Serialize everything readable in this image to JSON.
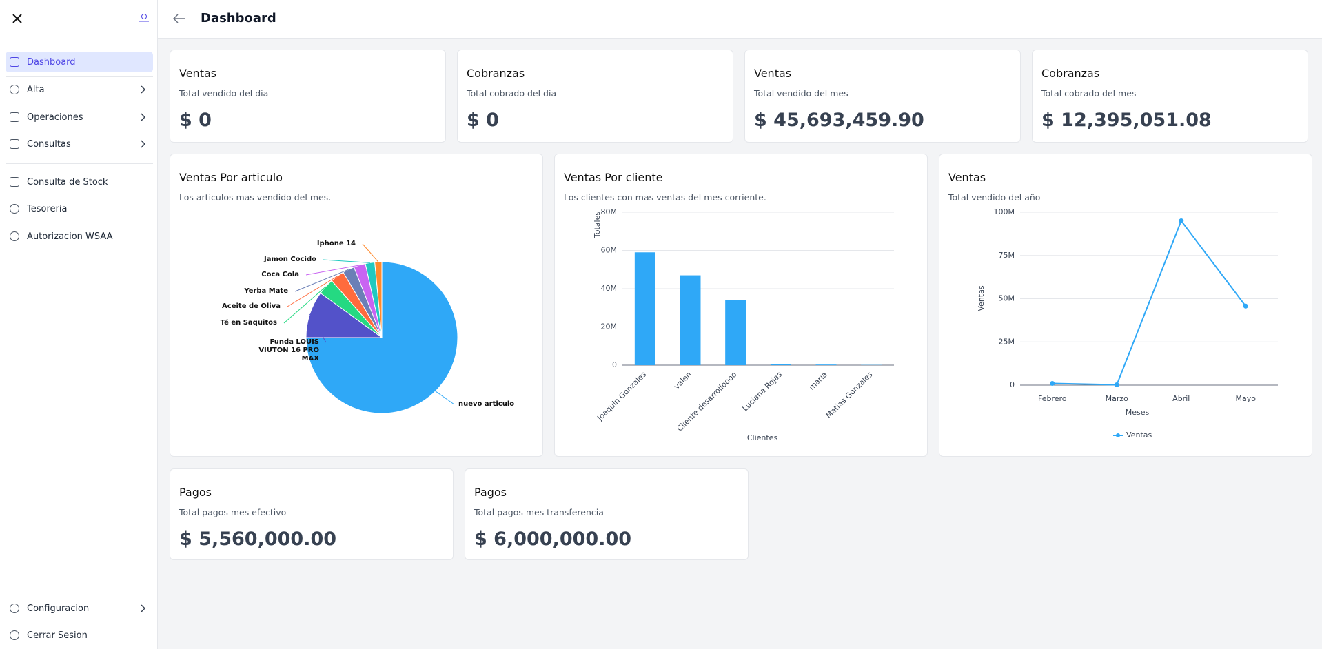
{
  "sidebar": {
    "items": [
      "Dashboard",
      "Alta",
      "Operaciones",
      "Consultas",
      "Consulta de Stock",
      "Tesoreria",
      "Autorizacion WSAA"
    ],
    "footer_items": [
      "Configuracion",
      "Cerrar Sesion"
    ]
  },
  "header": {
    "title": "Dashboard"
  },
  "stat_cards": [
    {
      "title": "Ventas",
      "subtitle": "Total vendido del dia",
      "value": "$ 0"
    },
    {
      "title": "Cobranzas",
      "subtitle": "Total cobrado del dia",
      "value": "$ 0"
    },
    {
      "title": "Ventas",
      "subtitle": "Total vendido del mes",
      "value": "$ 45,693,459.90"
    },
    {
      "title": "Cobranzas",
      "subtitle": "Total cobrado del mes",
      "value": "$ 12,395,051.08"
    }
  ],
  "payment_cards": [
    {
      "title": "Pagos",
      "subtitle": "Total pagos mes efectivo",
      "value": "$ 5,560,000.00"
    },
    {
      "title": "Pagos",
      "subtitle": "Total pagos mes transferencia",
      "value": "$ 6,000,000.00"
    }
  ],
  "chart_data": [
    {
      "type": "pie",
      "title": "Ventas Por articulo",
      "subtitle": "Los articulos mas vendido del mes.",
      "categories": [
        "nuevo articulo",
        "Funda LOUIS VIUTON 16 PRO MAX",
        "Té en Saquitos",
        "Aceite de Oliva",
        "Yerba Mate",
        "Coca Cola",
        "Jamon Cocido",
        "Iphone 14"
      ],
      "values": [
        75,
        10,
        3.5,
        3,
        2.5,
        2.5,
        2,
        1.5
      ],
      "colors": [
        "#2fa8f7",
        "#5352c9",
        "#25d982",
        "#ff6b3d",
        "#6b7fb6",
        "#c964f2",
        "#21c9c0",
        "#ff8a2d"
      ]
    },
    {
      "type": "bar",
      "title": "Ventas Por cliente",
      "subtitle": "Los clientes con mas ventas del mes corriente.",
      "categories": [
        "Joaquin Gonzales",
        "valen",
        "Cliente desarrolloooo",
        "Luciana Rojas",
        "maria",
        "Matias Gonzales"
      ],
      "values": [
        59000000,
        47000000,
        34000000,
        600000,
        300000,
        100000
      ],
      "color": "#2fa8f7",
      "ylim": [
        0,
        80000000
      ],
      "yticks": [
        0,
        {
          "value": 20000000,
          "label": "20M"
        },
        {
          "value": 40000000,
          "label": "40M"
        },
        {
          "value": 60000000,
          "label": "60M"
        },
        {
          "value": 80000000,
          "label": "80M"
        }
      ],
      "y_label": "Totales",
      "x_label": "Clientes",
      "grid": true
    },
    {
      "type": "line",
      "title": "Ventas",
      "subtitle": "Total vendido del año",
      "categories": [
        "Febrero",
        "Marzo",
        "Abril",
        "Mayo"
      ],
      "series": [
        {
          "name": "Ventas",
          "color": "#2fa8f7",
          "values": [
            1000000,
            200000,
            95000000,
            45693459.9
          ]
        }
      ],
      "ylim": [
        0,
        100000000
      ],
      "yticks": [
        0,
        {
          "value": 25000000,
          "label": "25M"
        },
        {
          "value": 50000000,
          "label": "50M"
        },
        {
          "value": 75000000,
          "label": "75M"
        },
        {
          "value": 100000000,
          "label": "100M"
        }
      ],
      "y_label": "Ventas",
      "x_label": "Meses",
      "grid": true,
      "legend": "bottom"
    }
  ]
}
